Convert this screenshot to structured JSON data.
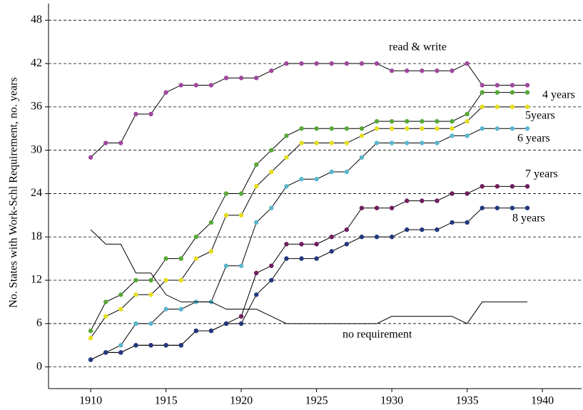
{
  "chart_data": {
    "type": "line",
    "y_label": "No. States with Work-Schl Requirement,   no. years",
    "x": [
      1910,
      1911,
      1912,
      1913,
      1914,
      1915,
      1916,
      1917,
      1918,
      1919,
      1920,
      1921,
      1922,
      1923,
      1924,
      1925,
      1926,
      1927,
      1928,
      1929,
      1930,
      1931,
      1932,
      1933,
      1934,
      1935,
      1936,
      1937,
      1938,
      1939
    ],
    "series": [
      {
        "name": "read & write",
        "color": "#a0489e",
        "markers": true,
        "values": [
          29,
          31,
          31,
          35,
          35,
          38,
          39,
          39,
          39,
          40,
          40,
          40,
          41,
          42,
          42,
          42,
          42,
          42,
          42,
          42,
          41,
          41,
          41,
          41,
          41,
          42,
          39,
          39,
          39,
          39
        ]
      },
      {
        "name": "4 years",
        "color": "#58a838",
        "markers": true,
        "values": [
          5,
          9,
          10,
          12,
          12,
          15,
          15,
          18,
          20,
          24,
          24,
          28,
          30,
          32,
          33,
          33,
          33,
          33,
          33,
          34,
          34,
          34,
          34,
          34,
          34,
          35,
          38,
          38,
          38,
          38
        ]
      },
      {
        "name": "5years",
        "color": "#e6de1e",
        "markers": true,
        "values": [
          4,
          7,
          8,
          10,
          10,
          12,
          12,
          15,
          16,
          21,
          21,
          25,
          27,
          29,
          31,
          31,
          31,
          31,
          32,
          33,
          33,
          33,
          33,
          33,
          33,
          34,
          36,
          36,
          36,
          36
        ]
      },
      {
        "name": "6 years",
        "color": "#5ab6cc",
        "markers": true,
        "values": [
          1,
          2,
          3,
          6,
          6,
          8,
          8,
          9,
          9,
          14,
          14,
          20,
          22,
          25,
          26,
          26,
          27,
          27,
          29,
          31,
          31,
          31,
          31,
          31,
          32,
          32,
          33,
          33,
          33,
          33
        ]
      },
      {
        "name": "7 years",
        "color": "#6e1e5e",
        "markers": true,
        "values": [
          1,
          2,
          2,
          3,
          3,
          3,
          3,
          5,
          5,
          6,
          7,
          13,
          14,
          17,
          17,
          17,
          18,
          19,
          22,
          22,
          22,
          23,
          23,
          23,
          24,
          24,
          25,
          25,
          25,
          25
        ]
      },
      {
        "name": "8 years",
        "color": "#22387e",
        "markers": true,
        "values": [
          1,
          2,
          2,
          3,
          3,
          3,
          3,
          5,
          5,
          6,
          6,
          10,
          12,
          15,
          15,
          15,
          16,
          17,
          18,
          18,
          18,
          19,
          19,
          19,
          20,
          20,
          22,
          22,
          22,
          22
        ]
      },
      {
        "name": "no requirement",
        "color": "#000000",
        "markers": false,
        "values": [
          19,
          17,
          17,
          13,
          13,
          10,
          9,
          9,
          9,
          8,
          8,
          8,
          7,
          6,
          6,
          6,
          6,
          6,
          6,
          6,
          7,
          7,
          7,
          7,
          7,
          6,
          9,
          9,
          9,
          9
        ]
      }
    ],
    "xlim": [
      1907.2,
      1942.6
    ],
    "ylim": [
      -3,
      50.3
    ],
    "xticks": [
      1910,
      1915,
      1920,
      1925,
      1930,
      1935,
      1940
    ],
    "yticks": [
      0,
      6,
      12,
      18,
      24,
      30,
      36,
      42,
      48
    ],
    "grid": true
  }
}
